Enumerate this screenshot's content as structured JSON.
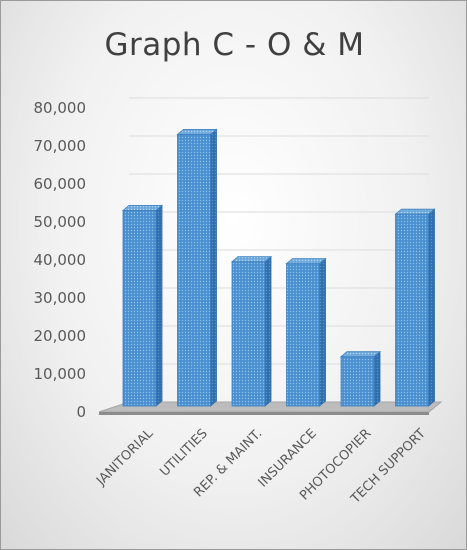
{
  "chart_data": {
    "type": "bar",
    "title": "Graph C - O & M",
    "categories": [
      "JANITORIAL",
      "UTILITIES",
      "REP. & MAINT.",
      "INSURANCE",
      "PHOTOCOPIER",
      "TECH SUPPORT"
    ],
    "values": [
      52000,
      72000,
      38500,
      38000,
      13500,
      51000
    ],
    "ylim": [
      0,
      80000
    ],
    "yticks": [
      "0",
      "10,000",
      "20,000",
      "30,000",
      "40,000",
      "50,000",
      "60,000",
      "70,000",
      "80,000"
    ],
    "grid": true,
    "bar_color": "#5b9bd5"
  }
}
